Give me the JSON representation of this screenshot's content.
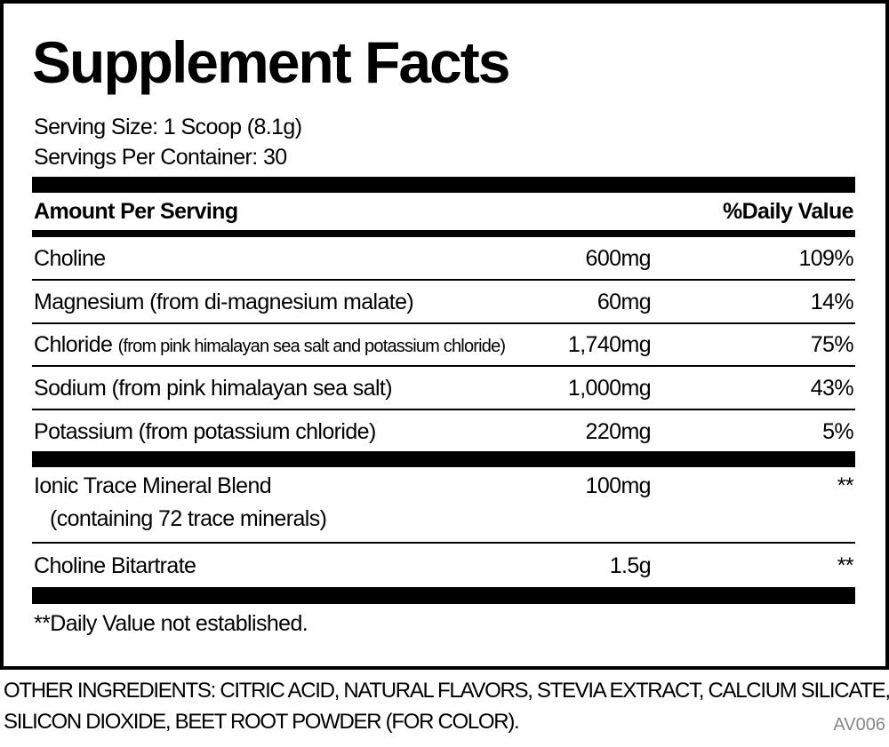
{
  "title": "Supplement Facts",
  "serving_size": "Serving Size: 1 Scoop (8.1g)",
  "servings_per_container": "Servings Per Container: 30",
  "table": {
    "header": [
      "Amount Per Serving",
      "%Daily Value"
    ],
    "rows": [
      {
        "name": "Choline",
        "amount": "600mg",
        "daily_value": "109%"
      },
      {
        "name": "Magnesium (from di-magnesium malate)",
        "amount": "60mg",
        "daily_value": "14%"
      },
      {
        "name": "Chloride",
        "note": "(from pink himalayan sea salt and potassium chloride)",
        "amount": "1,740mg",
        "daily_value": "75%"
      },
      {
        "name": "Sodium (from pink himalayan sea salt)",
        "amount": "1,000mg",
        "daily_value": "43%"
      },
      {
        "name": "Potassium (from potassium chloride)",
        "amount": "220mg",
        "daily_value": "5%"
      },
      {
        "name": "Ionic Trace Mineral Blend",
        "note": "(containing 72 trace minerals)",
        "amount": "100mg",
        "daily_value": "**"
      },
      {
        "name": "Choline Bitartrate",
        "amount": "1.5g",
        "daily_value": "**"
      }
    ]
  },
  "footnote": "**Daily Value not established.",
  "other_ingredients": [
    "OTHER INGREDIENTS: CITRIC ACID, NATURAL FLAVORS, STEVIA EXTRACT, CALCIUM SILICATE,",
    "SILICON DIOXIDE, BEET ROOT POWDER (FOR COLOR)."
  ],
  "code": "AV006"
}
